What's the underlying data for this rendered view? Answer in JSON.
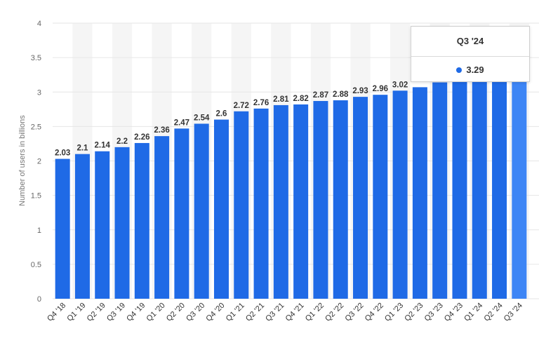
{
  "chart_data": {
    "type": "bar",
    "categories": [
      "Q4 '18",
      "Q1 '19",
      "Q2 '19",
      "Q3 '19",
      "Q4 '19",
      "Q1 '20",
      "Q2 '20",
      "Q3 '20",
      "Q4 '20",
      "Q1 '21",
      "Q2 '21",
      "Q3 '21",
      "Q4 '21",
      "Q1 '22",
      "Q2 '22",
      "Q3 '22",
      "Q4 '22",
      "Q1 '23",
      "Q2 '23",
      "Q3 '23",
      "Q4 '23",
      "Q1 '24",
      "Q2 '24",
      "Q3 '24"
    ],
    "values": [
      2.03,
      2.1,
      2.14,
      2.2,
      2.26,
      2.36,
      2.47,
      2.54,
      2.6,
      2.72,
      2.76,
      2.81,
      2.82,
      2.87,
      2.88,
      2.93,
      2.96,
      3.02,
      3.07,
      3.14,
      3.19,
      3.24,
      3.27,
      3.29
    ],
    "value_labels": [
      "2.03",
      "2.1",
      "2.14",
      "2.2",
      "2.26",
      "2.36",
      "2.47",
      "2.54",
      "2.6",
      "2.72",
      "2.76",
      "2.81",
      "2.82",
      "2.87",
      "2.88",
      "2.93",
      "2.96",
      "3.02",
      "",
      "",
      "",
      "",
      "",
      ""
    ],
    "title": "",
    "xlabel": "",
    "ylabel": "Number of users in billions",
    "ylim": [
      0,
      4
    ],
    "yticks": [
      "0",
      "0.5",
      "1",
      "1.5",
      "2",
      "2.5",
      "3",
      "3.5",
      "4"
    ],
    "grid": true,
    "colors": {
      "bar": "#1f6ae6",
      "highlight": "#3d85f5",
      "band": "#f5f5f5",
      "grid": "#e6e6e6"
    },
    "highlighted_index": 23
  },
  "tooltip": {
    "title": "Q3 '24",
    "value": "3.29"
  }
}
